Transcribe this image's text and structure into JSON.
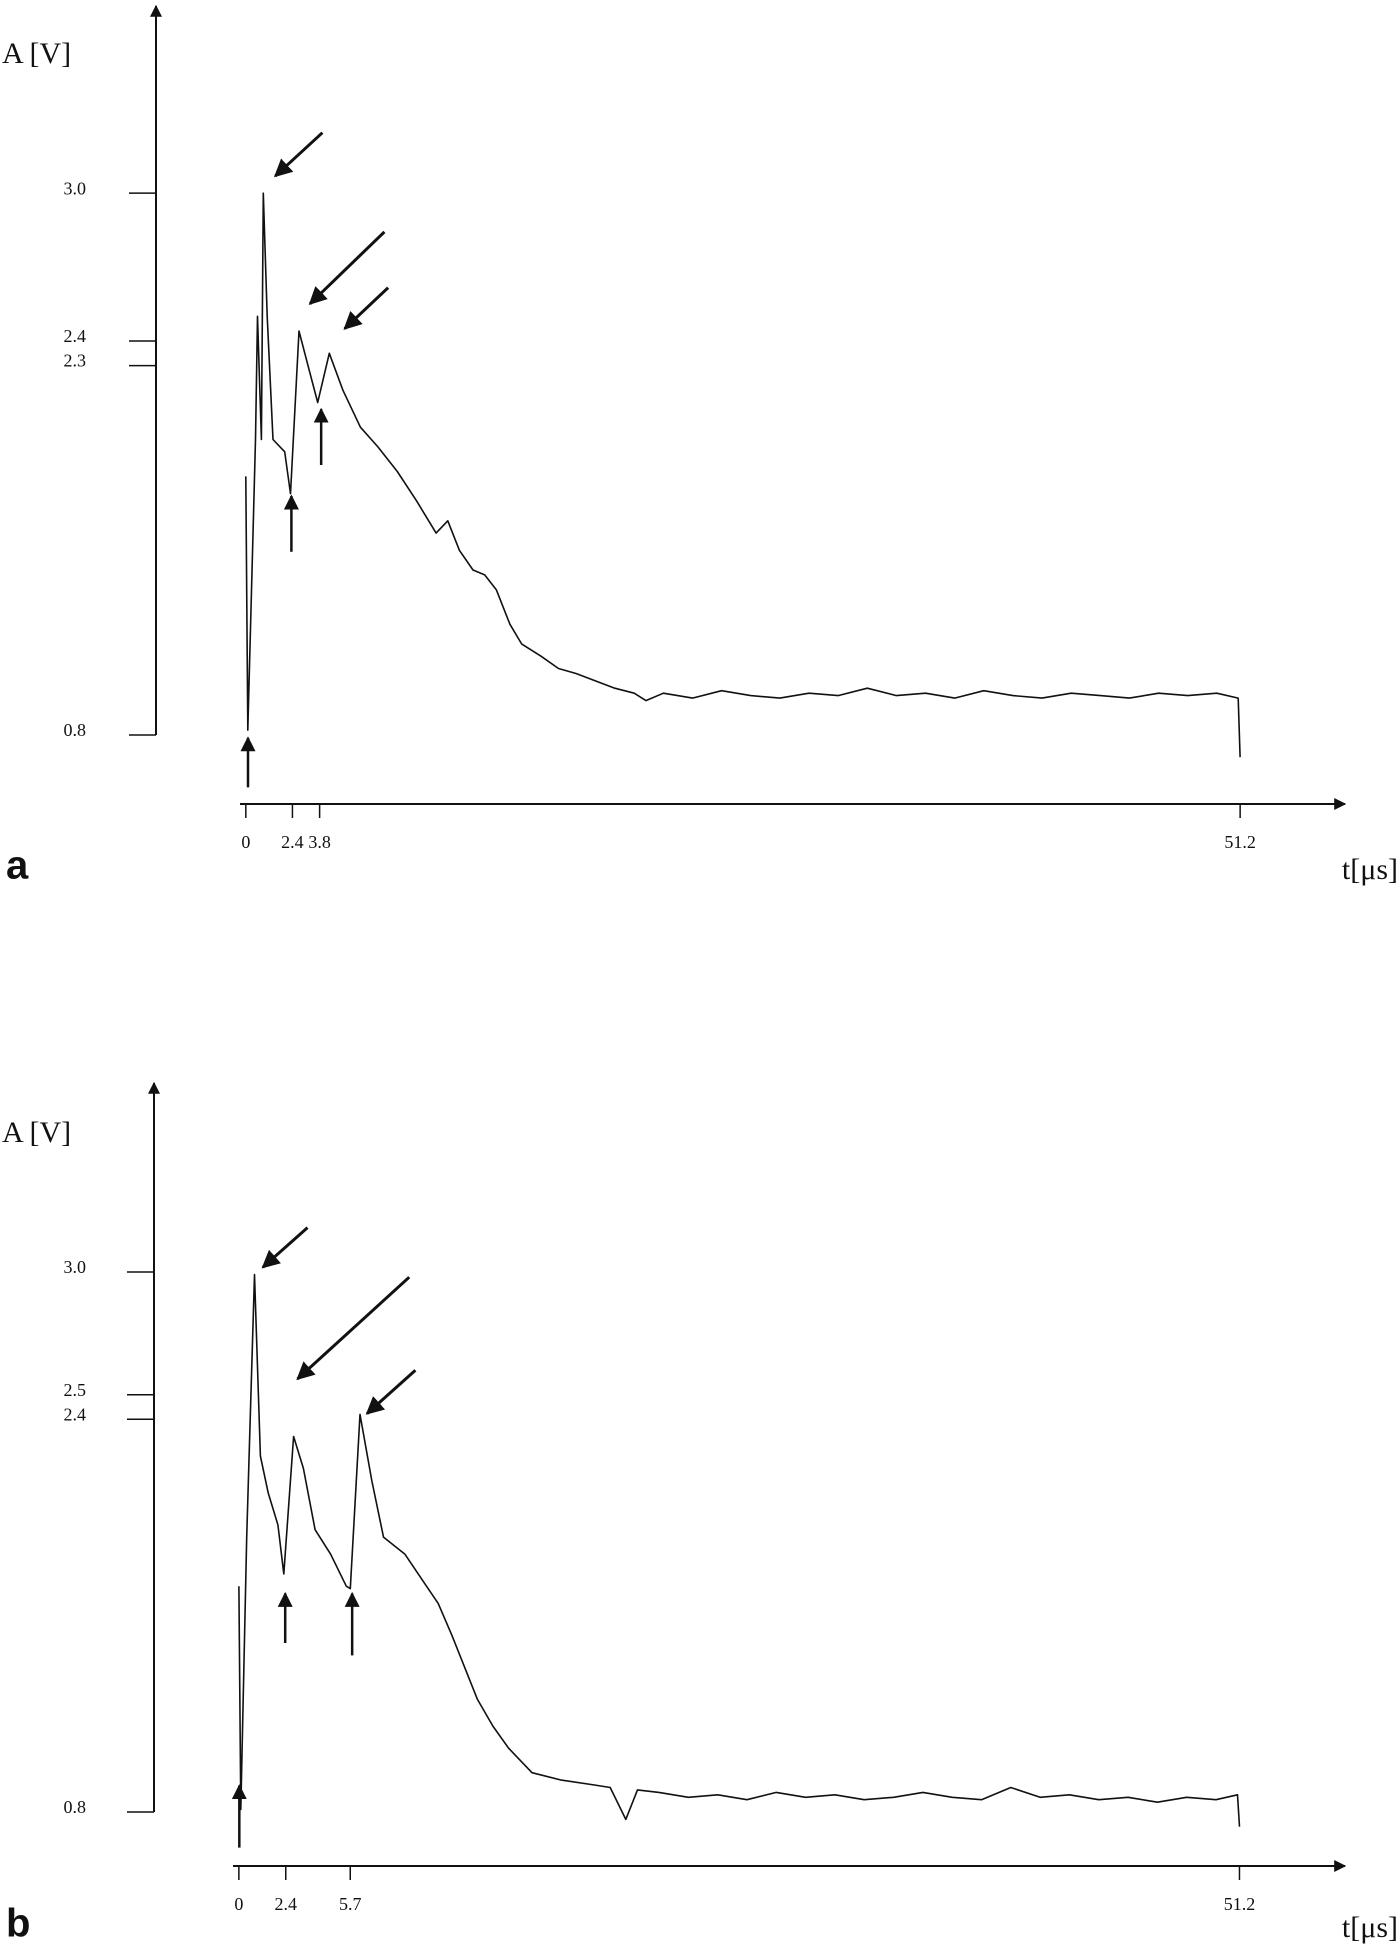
{
  "chart_data": [
    {
      "type": "line",
      "panel_label": "a",
      "y_label": "A [V]",
      "x_label": "t[μs]",
      "color": "#111111",
      "x": [
        0,
        0.1,
        0.5,
        0.6,
        0.8,
        0.9,
        1.1,
        1.4,
        2.0,
        2.3,
        2.74,
        3.2,
        3.7,
        4.3,
        5.0,
        5.9,
        6.8,
        7.8,
        8.8,
        9.8,
        10.4,
        11.0,
        11.7,
        12.3,
        12.9,
        13.6,
        14.2,
        15.2,
        16.1,
        17.0,
        18.0,
        19.0,
        20.0,
        20.6,
        21.5,
        23,
        24.5,
        26,
        27.5,
        29,
        30.5,
        32,
        33.5,
        35,
        36.5,
        38,
        39.5,
        41,
        42.5,
        44,
        45.5,
        47,
        48.5,
        50,
        51.1,
        51.2
      ],
      "values": [
        1.85,
        0.82,
        2.0,
        2.5,
        2.0,
        3.0,
        2.5,
        2.0,
        1.95,
        1.78,
        2.44,
        2.3,
        2.15,
        2.35,
        2.2,
        2.05,
        1.97,
        1.87,
        1.75,
        1.62,
        1.67,
        1.55,
        1.47,
        1.45,
        1.39,
        1.25,
        1.17,
        1.12,
        1.07,
        1.05,
        1.02,
        0.99,
        0.97,
        0.94,
        0.97,
        0.95,
        0.98,
        0.96,
        0.95,
        0.97,
        0.96,
        0.99,
        0.96,
        0.97,
        0.95,
        0.98,
        0.96,
        0.95,
        0.97,
        0.96,
        0.95,
        0.97,
        0.96,
        0.97,
        0.95,
        0.71
      ],
      "xlim": [
        -0.3,
        56.6
      ],
      "ylim": [
        0.52,
        3.76
      ],
      "xticks": [
        0,
        2.4,
        3.8,
        51.2
      ],
      "yticks": [
        0.8,
        2.3,
        2.4,
        {
          "value": 3,
          "label": "3.0"
        }
      ]
    },
    {
      "type": "line",
      "panel_label": "b",
      "y_label": "A [V]",
      "x_label": "t[μs]",
      "color": "#111111",
      "x": [
        0,
        0.1,
        0.4,
        0.8,
        1.1,
        1.5,
        2.0,
        2.3,
        2.8,
        3.3,
        3.9,
        4.7,
        5.5,
        5.7,
        6.2,
        6.8,
        7.4,
        8.5,
        9.6,
        10.2,
        10.9,
        11.5,
        12.2,
        13.0,
        13.8,
        15.0,
        16.5,
        18.2,
        19.0,
        19.8,
        20.4,
        21.5,
        23,
        24.5,
        26,
        27.5,
        29,
        30.5,
        32,
        33.5,
        35,
        36.5,
        38,
        39.5,
        41,
        42.5,
        44,
        45.5,
        47,
        48.5,
        50,
        51.1,
        51.2
      ],
      "values": [
        1.72,
        0.81,
        1.92,
        2.99,
        2.25,
        2.1,
        1.97,
        1.77,
        2.33,
        2.2,
        1.95,
        1.85,
        1.72,
        1.71,
        2.42,
        2.15,
        1.92,
        1.85,
        1.72,
        1.65,
        1.52,
        1.4,
        1.26,
        1.15,
        1.06,
        0.96,
        0.93,
        0.91,
        0.9,
        0.77,
        0.89,
        0.88,
        0.86,
        0.87,
        0.85,
        0.88,
        0.86,
        0.87,
        0.85,
        0.86,
        0.88,
        0.86,
        0.85,
        0.9,
        0.86,
        0.87,
        0.85,
        0.86,
        0.84,
        0.86,
        0.85,
        0.87,
        0.74
      ],
      "xlim": [
        -0.3,
        56.6
      ],
      "ylim": [
        0.58,
        3.77
      ],
      "xticks": [
        0,
        2.4,
        5.7,
        51.2
      ],
      "yticks": [
        0.8,
        2.4,
        2.5,
        {
          "value": 3,
          "label": "3.0"
        }
      ]
    }
  ]
}
